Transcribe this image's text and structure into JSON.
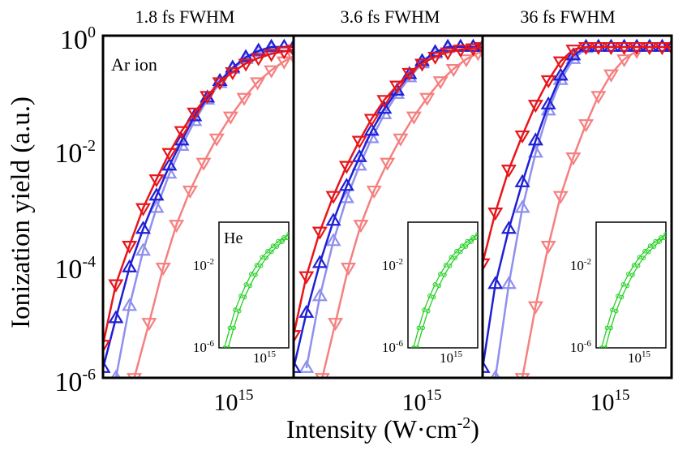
{
  "chart_data": {
    "type": "line",
    "ylabel": "Ionization yield (a.u.)",
    "xlabel_main": "Intensity (W·cm",
    "xlabel_sup": "-2",
    "xlabel_close": ")",
    "xscale": "log",
    "yscale": "log",
    "xlim": [
      220000000000000.0,
      2600000000000000.0
    ],
    "ylim": [
      1e-06,
      1.6
    ],
    "yticks": [
      {
        "base": "10",
        "exp": "0",
        "value": 1
      },
      {
        "base": "10",
        "exp": "-2",
        "value": 0.01
      },
      {
        "base": "10",
        "exp": "-4",
        "value": 0.0001
      },
      {
        "base": "10",
        "exp": "-6",
        "value": 1e-06
      }
    ],
    "xticks": [
      {
        "base": "10",
        "exp": "15",
        "value": 1000000000000000.0
      }
    ],
    "annotation": "Ar ion",
    "colors": {
      "red": "#e8151b",
      "light_red": "#f58080",
      "blue": "#1f1fd6",
      "light_blue": "#8f8fef",
      "green": "#22d022"
    },
    "panels": [
      {
        "title": "1.8 fs FWHM",
        "series": [
          {
            "name": "red-down-triangle",
            "color": "#e8151b",
            "marker": "down",
            "x": [
              220000000000000.0,
              260000000000000.0,
              310000000000000.0,
              370000000000000.0,
              440000000000000.0,
              520000000000000.0,
              610000000000000.0,
              720000000000000.0,
              850000000000000.0,
              1000000000000000.0,
              1180000000000000.0,
              1400000000000000.0,
              1650000000000000.0,
              1950000000000000.0,
              2300000000000000.0,
              2600000000000000.0
            ],
            "y": [
              4e-06,
              5e-05,
              0.00025,
              0.0012,
              0.004,
              0.012,
              0.03,
              0.065,
              0.13,
              0.23,
              0.35,
              0.5,
              0.63,
              0.75,
              0.83,
              0.9
            ]
          },
          {
            "name": "blue-up-triangle",
            "color": "#1f1fd6",
            "marker": "up",
            "x": [
              220000000000000.0,
              260000000000000.0,
              310000000000000.0,
              370000000000000.0,
              440000000000000.0,
              520000000000000.0,
              610000000000000.0,
              720000000000000.0,
              850000000000000.0,
              1000000000000000.0,
              1180000000000000.0,
              1400000000000000.0,
              1650000000000000.0,
              1950000000000000.0,
              2300000000000000.0,
              2600000000000000.0
            ],
            "y": [
              1.5e-06,
              1.2e-05,
              0.0001,
              0.0005,
              0.002,
              0.007,
              0.02,
              0.055,
              0.12,
              0.24,
              0.42,
              0.65,
              0.85,
              1.0,
              1.0,
              1.0
            ]
          },
          {
            "name": "light-blue-up-triangle",
            "color": "#8f8fef",
            "marker": "up",
            "x": [
              260000000000000.0,
              310000000000000.0,
              370000000000000.0,
              440000000000000.0,
              520000000000000.0,
              610000000000000.0,
              720000000000000.0,
              850000000000000.0,
              1000000000000000.0,
              1180000000000000.0,
              1400000000000000.0,
              1650000000000000.0,
              1950000000000000.0,
              2300000000000000.0,
              2600000000000000.0
            ],
            "y": [
              1e-06,
              2e-05,
              0.0002,
              0.0012,
              0.005,
              0.016,
              0.045,
              0.11,
              0.22,
              0.4,
              0.6,
              0.8,
              0.95,
              1.0,
              1.0
            ]
          },
          {
            "name": "light-red-down-triangle",
            "color": "#f58080",
            "marker": "down",
            "x": [
              330000000000000.0,
              400000000000000.0,
              480000000000000.0,
              570000000000000.0,
              680000000000000.0,
              810000000000000.0,
              960000000000000.0,
              1150000000000000.0,
              1370000000000000.0,
              1630000000000000.0,
              1950000000000000.0,
              2300000000000000.0,
              2600000000000000.0
            ],
            "y": [
              1e-06,
              1e-05,
              0.0001,
              0.0006,
              0.0025,
              0.008,
              0.022,
              0.055,
              0.12,
              0.23,
              0.38,
              0.55,
              0.68
            ]
          }
        ]
      },
      {
        "title": "3.6 fs FWHM",
        "series": [
          {
            "name": "red-down-triangle",
            "color": "#e8151b",
            "marker": "down",
            "x": [
              220000000000000.0,
              260000000000000.0,
              310000000000000.0,
              370000000000000.0,
              440000000000000.0,
              520000000000000.0,
              610000000000000.0,
              720000000000000.0,
              850000000000000.0,
              1000000000000000.0,
              1180000000000000.0,
              1400000000000000.0,
              1650000000000000.0,
              1950000000000000.0,
              2300000000000000.0,
              2600000000000000.0
            ],
            "y": [
              6e-06,
              7e-05,
              0.00045,
              0.002,
              0.007,
              0.02,
              0.05,
              0.11,
              0.2,
              0.34,
              0.5,
              0.67,
              0.8,
              0.9,
              0.95,
              1.0
            ]
          },
          {
            "name": "blue-up-triangle",
            "color": "#1f1fd6",
            "marker": "up",
            "x": [
              220000000000000.0,
              260000000000000.0,
              310000000000000.0,
              370000000000000.0,
              440000000000000.0,
              520000000000000.0,
              610000000000000.0,
              720000000000000.0,
              850000000000000.0,
              1000000000000000.0,
              1180000000000000.0,
              1400000000000000.0,
              1650000000000000.0,
              1950000000000000.0,
              2300000000000000.0,
              2600000000000000.0
            ],
            "y": [
              1.5e-06,
              1.5e-05,
              0.00012,
              0.0007,
              0.003,
              0.01,
              0.03,
              0.075,
              0.16,
              0.32,
              0.55,
              0.8,
              1.0,
              1.0,
              1.0,
              1.0
            ]
          },
          {
            "name": "light-blue-up-triangle",
            "color": "#8f8fef",
            "marker": "up",
            "x": [
              260000000000000.0,
              310000000000000.0,
              370000000000000.0,
              440000000000000.0,
              520000000000000.0,
              610000000000000.0,
              720000000000000.0,
              850000000000000.0,
              1000000000000000.0,
              1180000000000000.0,
              1400000000000000.0,
              1650000000000000.0,
              1950000000000000.0,
              2300000000000000.0,
              2600000000000000.0
            ],
            "y": [
              1.5e-06,
              3e-05,
              0.0003,
              0.0018,
              0.007,
              0.022,
              0.06,
              0.14,
              0.28,
              0.5,
              0.75,
              0.95,
              1.0,
              1.0,
              1.0
            ]
          },
          {
            "name": "light-red-down-triangle",
            "color": "#f58080",
            "marker": "down",
            "x": [
              320000000000000.0,
              380000000000000.0,
              450000000000000.0,
              530000000000000.0,
              630000000000000.0,
              750000000000000.0,
              890000000000000.0,
              1060000000000000.0,
              1260000000000000.0,
              1500000000000000.0,
              1780000000000000.0,
              2100000000000000.0,
              2450000000000000.0,
              2600000000000000.0
            ],
            "y": [
              1e-06,
              1e-05,
              0.0001,
              0.0006,
              0.0025,
              0.008,
              0.022,
              0.055,
              0.12,
              0.24,
              0.4,
              0.6,
              0.78,
              0.85
            ]
          }
        ]
      },
      {
        "title": "36 fs FWHM",
        "series": [
          {
            "name": "red-down-triangle",
            "color": "#e8151b",
            "marker": "down",
            "x": [
              220000000000000.0,
              260000000000000.0,
              310000000000000.0,
              370000000000000.0,
              440000000000000.0,
              520000000000000.0,
              610000000000000.0,
              720000000000000.0,
              850000000000000.0,
              1000000000000000.0,
              1180000000000000.0,
              1400000000000000.0,
              1650000000000000.0,
              1950000000000000.0,
              2300000000000000.0,
              2600000000000000.0
            ],
            "y": [
              0.00012,
              0.001,
              0.006,
              0.025,
              0.09,
              0.25,
              0.55,
              0.9,
              1.0,
              1.0,
              1.0,
              1.0,
              1.0,
              1.0,
              1.0,
              1.0
            ]
          },
          {
            "name": "blue-up-triangle",
            "color": "#1f1fd6",
            "marker": "up",
            "x": [
              220000000000000.0,
              260000000000000.0,
              310000000000000.0,
              370000000000000.0,
              440000000000000.0,
              520000000000000.0,
              610000000000000.0,
              720000000000000.0,
              850000000000000.0,
              1000000000000000.0,
              1180000000000000.0,
              1400000000000000.0,
              1650000000000000.0,
              1950000000000000.0,
              2300000000000000.0,
              2600000000000000.0
            ],
            "y": [
              1.5e-06,
              5e-05,
              0.0005,
              0.0035,
              0.02,
              0.09,
              0.3,
              0.7,
              1.0,
              1.0,
              1.0,
              1.0,
              1.0,
              1.0,
              1.0,
              1.0
            ]
          },
          {
            "name": "light-blue-up-triangle",
            "color": "#8f8fef",
            "marker": "up",
            "x": [
              260000000000000.0,
              310000000000000.0,
              370000000000000.0,
              440000000000000.0,
              520000000000000.0,
              610000000000000.0,
              720000000000000.0,
              850000000000000.0,
              1000000000000000.0,
              1180000000000000.0,
              1400000000000000.0,
              1650000000000000.0,
              1950000000000000.0,
              2300000000000000.0,
              2600000000000000.0
            ],
            "y": [
              1e-06,
              5e-05,
              0.0012,
              0.012,
              0.07,
              0.25,
              0.6,
              0.95,
              1.0,
              1.0,
              1.0,
              1.0,
              1.0,
              1.0,
              1.0
            ]
          },
          {
            "name": "light-red-down-triangle",
            "color": "#f58080",
            "marker": "down",
            "x": [
              370000000000000.0,
              440000000000000.0,
              520000000000000.0,
              610000000000000.0,
              720000000000000.0,
              850000000000000.0,
              1000000000000000.0,
              1180000000000000.0,
              1400000000000000.0,
              1650000000000000.0,
              1950000000000000.0,
              2300000000000000.0,
              2600000000000000.0
            ],
            "y": [
              1e-06,
              2e-05,
              0.00025,
              0.002,
              0.01,
              0.04,
              0.13,
              0.32,
              0.6,
              0.85,
              1.0,
              1.0,
              1.0
            ]
          }
        ]
      }
    ],
    "inset": {
      "label": "He",
      "yticks": [
        {
          "base": "10",
          "exp": "-2",
          "value": 0.01
        },
        {
          "base": "10",
          "exp": "-6",
          "value": 1e-06
        }
      ],
      "xticks": [
        {
          "base": "10",
          "exp": "15",
          "value": 1000000000000000.0
        }
      ],
      "xlim": [
        250000000000000.0,
        2600000000000000.0
      ],
      "ylim": [
        1e-06,
        2.0
      ],
      "series": [
        {
          "name": "green-circle-1",
          "color": "#22d022",
          "x": [
            300000000000000.0,
            360000000000000.0,
            430000000000000.0,
            520000000000000.0,
            620000000000000.0,
            740000000000000.0,
            890000000000000.0,
            1070000000000000.0,
            1280000000000000.0,
            1530000000000000.0,
            1830000000000000.0,
            2200000000000000.0,
            2600000000000000.0
          ],
          "y": [
            1e-06,
            1e-05,
            8e-05,
            0.0004,
            0.0015,
            0.005,
            0.014,
            0.035,
            0.07,
            0.13,
            0.22,
            0.34,
            0.5
          ]
        },
        {
          "name": "green-circle-2",
          "color": "#22d022",
          "x": [
            340000000000000.0,
            410000000000000.0,
            490000000000000.0,
            590000000000000.0,
            710000000000000.0,
            850000000000000.0,
            1020000000000000.0,
            1220000000000000.0,
            1460000000000000.0,
            1750000000000000.0,
            2100000000000000.0,
            2500000000000000.0
          ],
          "y": [
            1e-06,
            1e-05,
            7e-05,
            0.00035,
            0.0013,
            0.0045,
            0.013,
            0.032,
            0.065,
            0.12,
            0.21,
            0.33
          ]
        }
      ]
    }
  }
}
